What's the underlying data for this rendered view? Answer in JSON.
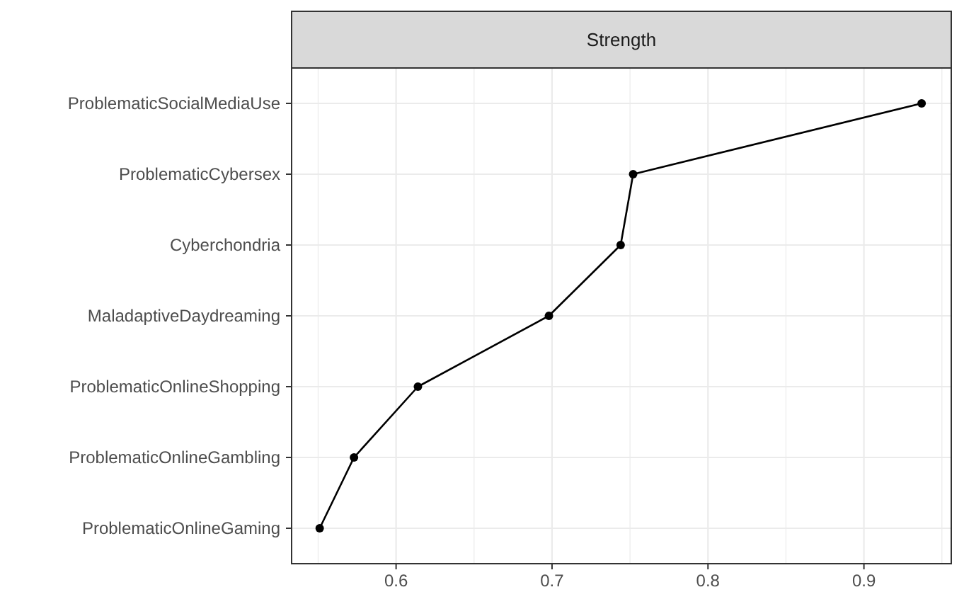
{
  "chart_data": {
    "type": "line",
    "orientation": "horizontal",
    "title": "Strength",
    "categories": [
      "ProblematicSocialMediaUse",
      "ProblematicCybersex",
      "Cyberchondria",
      "MaladaptiveDaydreaming",
      "ProblematicOnlineShopping",
      "ProblematicOnlineGambling",
      "ProblematicOnlineGaming"
    ],
    "series": [
      {
        "color": "#000000",
        "values": [
          0.937,
          0.752,
          0.744,
          0.698,
          0.614,
          0.573,
          0.551
        ]
      }
    ],
    "xlim": [
      0.533,
      0.956
    ],
    "xticks": [
      {
        "value": 0.55,
        "label": null
      },
      0.6,
      {
        "value": 0.65,
        "label": null
      },
      0.7,
      {
        "value": 0.75,
        "label": null
      },
      0.8,
      {
        "value": 0.85,
        "label": null
      },
      0.9,
      {
        "value": 0.95,
        "label": null
      }
    ],
    "grid": true,
    "marker": "circle",
    "line_style": "solid"
  }
}
